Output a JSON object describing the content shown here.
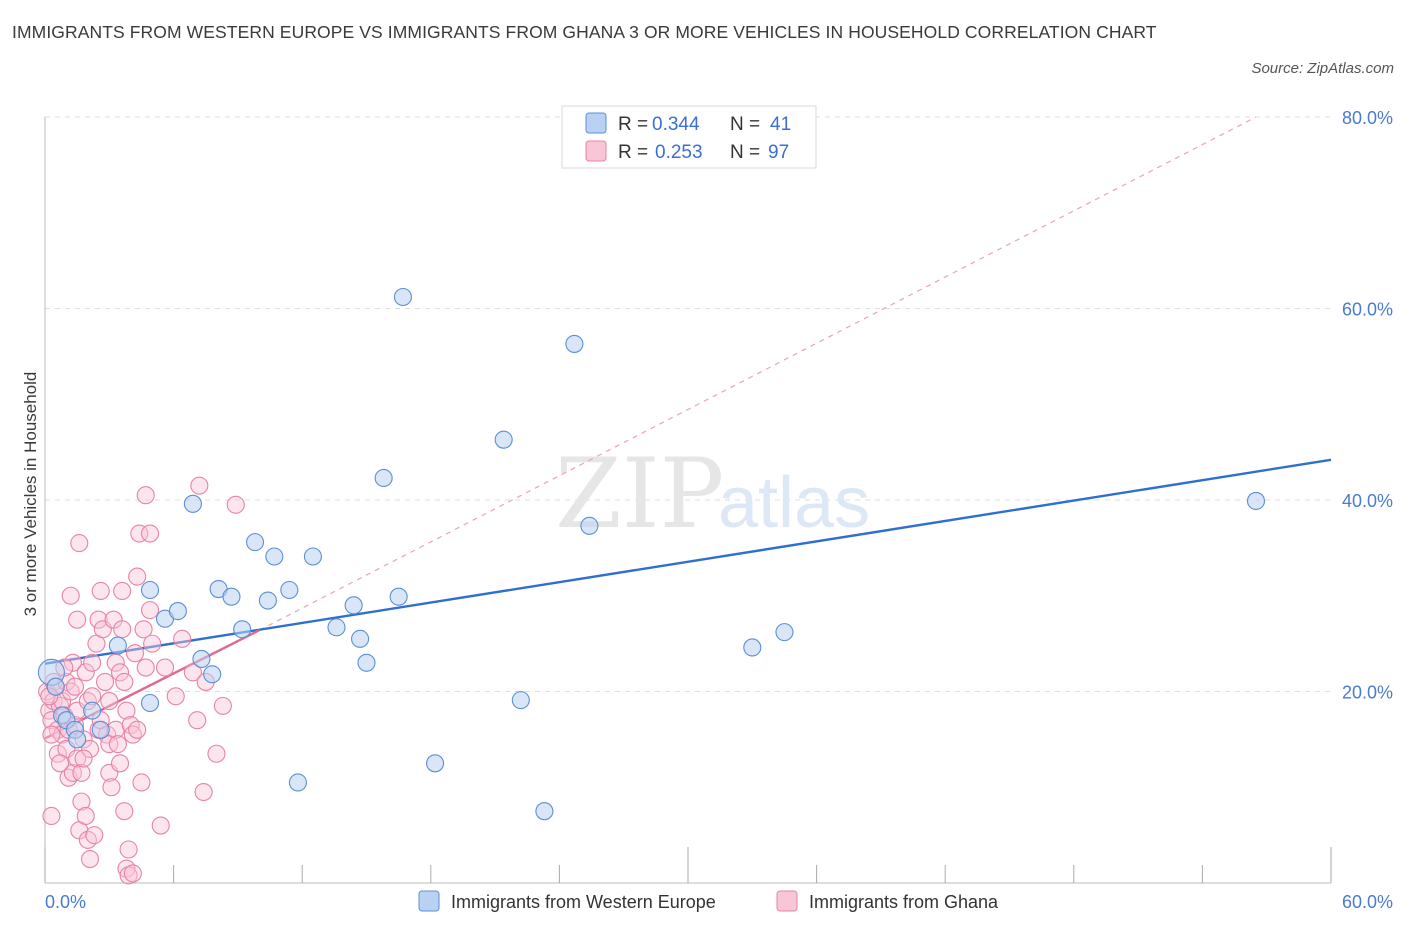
{
  "title": "IMMIGRANTS FROM WESTERN EUROPE VS IMMIGRANTS FROM GHANA 3 OR MORE VEHICLES IN HOUSEHOLD CORRELATION CHART",
  "source": "Source: ZipAtlas.com",
  "watermark": {
    "zip": "ZIP",
    "atlas": "atlas"
  },
  "colors": {
    "blue_fill": "#b9d1f3",
    "blue_stroke": "#5b8fd6",
    "blue_line": "#2f6fd0",
    "pink_fill": "#f8c6d6",
    "pink_stroke": "#e883a6",
    "pink_line": "#e0698f",
    "tick_color": "#4a7bd0",
    "grid": "#dddddd"
  },
  "legend": {
    "rows": [
      {
        "r_label": "R =",
        "r_value": "0.344",
        "n_label": "N =",
        "n_value": "41"
      },
      {
        "r_label": "R =",
        "r_value": "0.253",
        "n_label": "N =",
        "n_value": "97"
      }
    ]
  },
  "chart_data": {
    "type": "scatter",
    "title": "IMMIGRANTS FROM WESTERN EUROPE VS IMMIGRANTS FROM GHANA 3 OR MORE VEHICLES IN HOUSEHOLD CORRELATION CHART",
    "xlabel": "",
    "ylabel": "3 or more Vehicles in Household",
    "xlim": [
      0,
      60
    ],
    "ylim": [
      0,
      80
    ],
    "x_tick_labels": [
      "0.0%",
      "60.0%"
    ],
    "y_tick_labels": [
      "20.0%",
      "40.0%",
      "60.0%",
      "80.0%"
    ],
    "y_ticks": [
      20,
      40,
      60,
      80
    ],
    "grid": true,
    "legend_position": "top-center",
    "series": [
      {
        "name": "Immigrants from Western Europe",
        "R": 0.344,
        "N": 41,
        "trend": {
          "x": [
            0,
            60
          ],
          "y": [
            22.9,
            44.2
          ]
        },
        "points": [
          [
            0.3,
            22
          ],
          [
            0.5,
            20.5
          ],
          [
            0.8,
            17.5
          ],
          [
            1.0,
            17
          ],
          [
            1.4,
            16
          ],
          [
            1.5,
            15
          ],
          [
            2.2,
            18
          ],
          [
            2.6,
            16
          ],
          [
            3.4,
            24.8
          ],
          [
            4.9,
            18.8
          ],
          [
            4.9,
            30.6
          ],
          [
            5.6,
            27.6
          ],
          [
            6.2,
            28.4
          ],
          [
            6.9,
            39.6
          ],
          [
            7.3,
            23.4
          ],
          [
            7.8,
            21.8
          ],
          [
            8.1,
            30.7
          ],
          [
            8.7,
            29.9
          ],
          [
            9.2,
            26.5
          ],
          [
            9.8,
            35.6
          ],
          [
            10.4,
            29.5
          ],
          [
            10.7,
            34.1
          ],
          [
            11.4,
            30.6
          ],
          [
            11.8,
            10.5
          ],
          [
            12.5,
            34.1
          ],
          [
            13.6,
            26.7
          ],
          [
            14.4,
            29
          ],
          [
            14.7,
            25.5
          ],
          [
            15.0,
            23
          ],
          [
            15.8,
            42.3
          ],
          [
            16.5,
            29.9
          ],
          [
            16.7,
            61.2
          ],
          [
            18.2,
            12.5
          ],
          [
            21.4,
            46.3
          ],
          [
            22.2,
            19.1
          ],
          [
            23.3,
            7.5
          ],
          [
            24.7,
            56.3
          ],
          [
            25.4,
            37.3
          ],
          [
            33.0,
            24.6
          ],
          [
            34.5,
            26.2
          ],
          [
            56.5,
            39.9
          ]
        ]
      },
      {
        "name": "Immigrants from Ghana",
        "R": 0.253,
        "N": 97,
        "trend": {
          "x": [
            0,
            10
          ],
          "y": [
            15.1,
            26.4
          ]
        },
        "trend_extended": {
          "x": [
            10,
            56.5
          ],
          "y": [
            26.4,
            80
          ]
        },
        "points": [
          [
            0.1,
            20
          ],
          [
            0.2,
            18
          ],
          [
            0.3,
            17
          ],
          [
            0.3,
            7
          ],
          [
            0.4,
            21
          ],
          [
            0.4,
            19
          ],
          [
            0.5,
            20.5
          ],
          [
            0.6,
            16
          ],
          [
            0.6,
            13.5
          ],
          [
            0.7,
            18.5
          ],
          [
            0.8,
            19
          ],
          [
            0.8,
            15.5
          ],
          [
            0.9,
            17.5
          ],
          [
            1.0,
            21
          ],
          [
            1.0,
            14
          ],
          [
            1.1,
            16
          ],
          [
            1.1,
            11
          ],
          [
            1.2,
            30
          ],
          [
            1.2,
            20
          ],
          [
            1.3,
            23
          ],
          [
            1.3,
            11.5
          ],
          [
            1.4,
            16.5
          ],
          [
            1.5,
            18
          ],
          [
            1.5,
            13
          ],
          [
            1.5,
            27.5
          ],
          [
            1.6,
            35.5
          ],
          [
            1.6,
            5.5
          ],
          [
            1.7,
            8.5
          ],
          [
            1.7,
            11.5
          ],
          [
            1.8,
            15
          ],
          [
            1.9,
            22
          ],
          [
            1.9,
            7
          ],
          [
            2.0,
            19
          ],
          [
            2.0,
            4.5
          ],
          [
            2.1,
            14
          ],
          [
            2.1,
            2.5
          ],
          [
            2.2,
            23
          ],
          [
            2.3,
            5
          ],
          [
            2.4,
            25
          ],
          [
            2.5,
            27.5
          ],
          [
            2.5,
            16
          ],
          [
            2.6,
            30.5
          ],
          [
            2.6,
            17
          ],
          [
            2.7,
            26.5
          ],
          [
            2.8,
            21
          ],
          [
            2.9,
            15.5
          ],
          [
            3.0,
            19
          ],
          [
            3.0,
            14.5
          ],
          [
            3.0,
            11.5
          ],
          [
            3.1,
            10
          ],
          [
            3.2,
            27.5
          ],
          [
            3.3,
            23
          ],
          [
            3.3,
            16
          ],
          [
            3.4,
            14.5
          ],
          [
            3.5,
            12.5
          ],
          [
            3.5,
            22
          ],
          [
            3.6,
            30.5
          ],
          [
            3.6,
            26.5
          ],
          [
            3.7,
            7.5
          ],
          [
            3.7,
            21
          ],
          [
            3.8,
            18
          ],
          [
            3.8,
            1.5
          ],
          [
            3.9,
            3.5
          ],
          [
            3.9,
            0.8
          ],
          [
            4.0,
            16.5
          ],
          [
            4.1,
            15.5
          ],
          [
            4.1,
            1
          ],
          [
            4.2,
            24
          ],
          [
            4.3,
            32
          ],
          [
            4.3,
            16
          ],
          [
            4.4,
            36.5
          ],
          [
            4.5,
            10.5
          ],
          [
            4.6,
            26.5
          ],
          [
            4.7,
            40.5
          ],
          [
            4.7,
            22.5
          ],
          [
            4.9,
            36.5
          ],
          [
            4.9,
            28.5
          ],
          [
            5.0,
            25
          ],
          [
            5.4,
            6
          ],
          [
            5.6,
            22.5
          ],
          [
            6.1,
            19.5
          ],
          [
            6.4,
            25.5
          ],
          [
            6.9,
            22
          ],
          [
            7.1,
            17
          ],
          [
            7.2,
            41.5
          ],
          [
            7.4,
            9.5
          ],
          [
            7.5,
            21
          ],
          [
            8.0,
            13.5
          ],
          [
            8.3,
            18.5
          ],
          [
            8.9,
            39.5
          ],
          [
            0.2,
            19.5
          ],
          [
            0.3,
            15.5
          ],
          [
            0.7,
            12.5
          ],
          [
            0.9,
            22.5
          ],
          [
            1.4,
            20.5
          ],
          [
            2.2,
            19.5
          ],
          [
            1.8,
            13
          ]
        ]
      }
    ]
  }
}
